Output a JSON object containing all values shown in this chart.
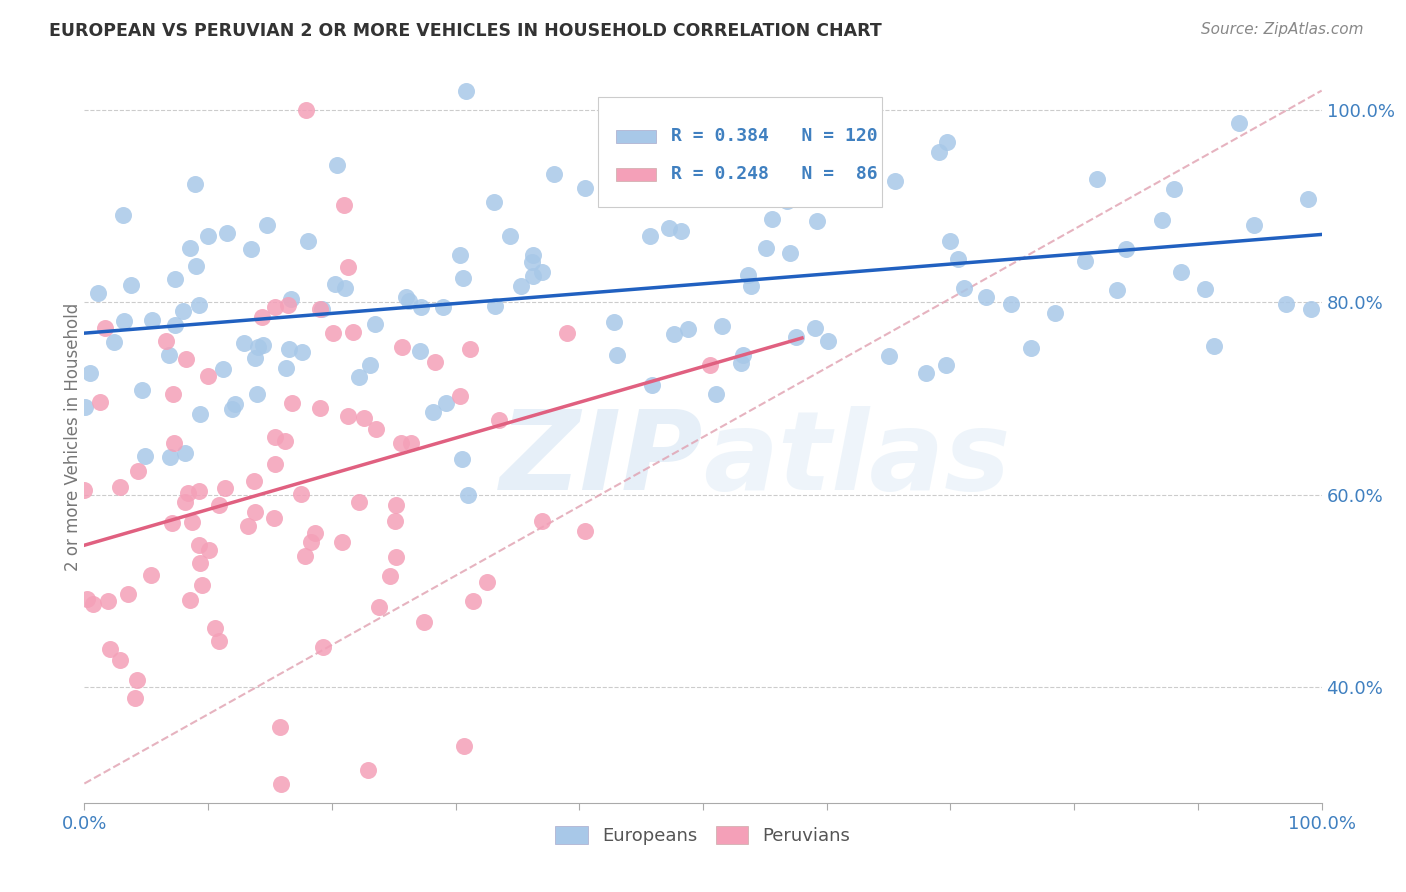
{
  "title": "EUROPEAN VS PERUVIAN 2 OR MORE VEHICLES IN HOUSEHOLD CORRELATION CHART",
  "source": "Source: ZipAtlas.com",
  "ylabel": "2 or more Vehicles in Household",
  "watermark": "ZIPatlas",
  "legend_european": "Europeans",
  "legend_peruvian": "Peruvians",
  "R_european": 0.384,
  "N_european": 120,
  "R_peruvian": 0.248,
  "N_peruvian": 86,
  "european_color": "#a8c8e8",
  "peruvian_color": "#f4a0b8",
  "european_line_color": "#2060c0",
  "peruvian_line_color": "#e06080",
  "diagonal_color": "#e0a0b0",
  "background_color": "#ffffff",
  "grid_color": "#cccccc",
  "tick_color": "#4080c0",
  "text_color": "#555555",
  "xmin": 0.0,
  "xmax": 1.0,
  "ymin": 0.28,
  "ymax": 1.04,
  "yticks": [
    0.4,
    0.6,
    0.8,
    1.0
  ],
  "ytick_labels": [
    "40.0%",
    "60.0%",
    "80.0%",
    "100.0%"
  ]
}
